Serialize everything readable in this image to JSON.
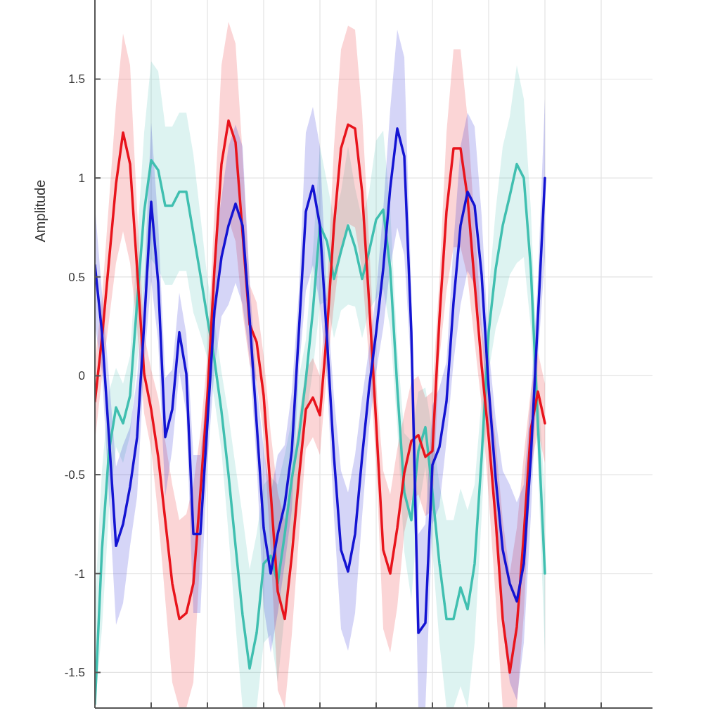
{
  "chart_data": {
    "type": "line",
    "ylabel": "Amplitude",
    "ylim": [
      -1.68,
      1.9
    ],
    "yticks": [
      {
        "value": -1.5,
        "label": "-1.5"
      },
      {
        "value": -1,
        "label": "-1"
      },
      {
        "value": -0.5,
        "label": "-0.5"
      },
      {
        "value": 0,
        "label": "0"
      },
      {
        "value": 0.5,
        "label": "0.5"
      },
      {
        "value": 1,
        "label": "1"
      },
      {
        "value": 1.5,
        "label": "1.5"
      }
    ],
    "grid": true,
    "tick_labels": "y",
    "line_style": "solid",
    "categories": [
      null,
      null,
      null,
      null,
      null,
      null,
      null,
      null,
      null,
      null,
      null,
      null,
      null,
      null,
      null,
      null,
      null,
      null,
      null,
      null,
      null,
      null,
      null,
      null,
      null,
      null,
      null,
      null,
      null,
      null,
      null,
      null,
      null,
      null,
      null,
      null,
      null,
      null,
      null,
      null,
      null,
      null,
      null,
      null,
      null,
      null,
      null,
      null,
      null,
      null,
      null,
      null,
      null,
      null,
      null,
      null,
      null,
      null,
      null,
      null,
      null,
      null,
      null,
      null,
      null
    ],
    "series": [
      {
        "color": "#40bfb0",
        "values": [
          -1.66,
          -0.88,
          -0.38,
          -0.16,
          -0.24,
          -0.1,
          0.37,
          0.83,
          1.09,
          1.04,
          0.86,
          0.86,
          0.93,
          0.93,
          0.72,
          0.51,
          0.29,
          0.08,
          -0.18,
          -0.5,
          -0.86,
          -1.21,
          -1.48,
          -1.3,
          -0.95,
          -0.91,
          -1.05,
          -0.8,
          -0.52,
          -0.31,
          -0.02,
          0.33,
          0.76,
          0.68,
          0.49,
          0.63,
          0.76,
          0.65,
          0.49,
          0.63,
          0.79,
          0.84,
          0.54,
          -0.06,
          -0.59,
          -0.73,
          -0.38,
          -0.26,
          -0.59,
          -0.95,
          -1.23,
          -1.23,
          -1.07,
          -1.18,
          -0.95,
          -0.41,
          0.22,
          0.54,
          0.76,
          0.91,
          1.07,
          1.0,
          0.54,
          -0.24,
          -1.0
        ],
        "lower": [
          -1.68,
          -1.28,
          -0.68,
          -0.36,
          -0.44,
          -0.3,
          0.07,
          0.43,
          0.59,
          0.54,
          0.46,
          0.46,
          0.53,
          0.53,
          0.32,
          0.21,
          0.09,
          -0.12,
          -0.38,
          -0.8,
          -1.26,
          -1.68,
          -1.68,
          -1.68,
          -1.35,
          -1.31,
          -1.55,
          -1.2,
          -0.82,
          -0.61,
          -0.22,
          0.03,
          0.36,
          0.38,
          0.19,
          0.33,
          0.36,
          0.35,
          0.19,
          0.33,
          0.39,
          0.44,
          0.24,
          -0.26,
          -0.89,
          -1.13,
          -0.68,
          -0.46,
          -0.89,
          -1.35,
          -1.68,
          -1.68,
          -1.57,
          -1.68,
          -1.35,
          -0.71,
          0.02,
          0.24,
          0.36,
          0.51,
          0.57,
          0.6,
          0.24,
          -0.44,
          -1.4
        ],
        "upper": [
          -1.16,
          -0.48,
          -0.08,
          0.04,
          -0.04,
          0.1,
          0.67,
          1.23,
          1.59,
          1.54,
          1.26,
          1.26,
          1.33,
          1.33,
          1.12,
          0.81,
          0.49,
          0.28,
          0.02,
          -0.2,
          -0.46,
          -0.71,
          -0.98,
          -0.8,
          -0.55,
          -0.51,
          -0.55,
          -0.4,
          -0.22,
          -0.01,
          0.18,
          0.63,
          1.16,
          0.98,
          0.79,
          0.93,
          1.16,
          0.95,
          0.79,
          0.93,
          1.19,
          1.24,
          0.84,
          0.14,
          -0.29,
          -0.33,
          -0.08,
          -0.06,
          -0.29,
          -0.55,
          -0.73,
          -0.73,
          -0.57,
          -0.68,
          -0.55,
          -0.11,
          0.42,
          0.84,
          1.16,
          1.31,
          1.57,
          1.4,
          0.84,
          -0.04,
          -0.6
        ]
      },
      {
        "color": "#e8141c",
        "values": [
          -0.13,
          0.19,
          0.58,
          0.97,
          1.23,
          1.07,
          0.54,
          0.01,
          -0.17,
          -0.41,
          -0.73,
          -1.05,
          -1.23,
          -1.2,
          -1.05,
          -0.59,
          -0.1,
          0.54,
          1.07,
          1.29,
          1.18,
          0.72,
          0.26,
          0.17,
          -0.1,
          -0.59,
          -1.09,
          -1.23,
          -0.91,
          -0.52,
          -0.17,
          -0.11,
          -0.2,
          0.22,
          0.76,
          1.15,
          1.27,
          1.25,
          0.93,
          0.37,
          -0.24,
          -0.88,
          -1.0,
          -0.77,
          -0.49,
          -0.33,
          -0.3,
          -0.41,
          -0.38,
          0.29,
          0.83,
          1.15,
          1.15,
          0.9,
          0.47,
          0.05,
          -0.31,
          -0.73,
          -1.23,
          -1.5,
          -1.27,
          -0.8,
          -0.27,
          -0.08,
          -0.24
        ],
        "lower": [
          -0.33,
          -0.01,
          0.28,
          0.57,
          0.73,
          0.57,
          0.24,
          -0.19,
          -0.37,
          -0.71,
          -1.13,
          -1.55,
          -1.68,
          -1.68,
          -1.55,
          -0.89,
          -0.3,
          0.24,
          0.57,
          0.79,
          0.68,
          0.32,
          0.06,
          -0.03,
          -0.3,
          -0.89,
          -1.59,
          -1.68,
          -1.31,
          -0.82,
          -0.37,
          -0.31,
          -0.4,
          0.02,
          0.36,
          0.65,
          0.77,
          0.75,
          0.53,
          0.07,
          -0.44,
          -1.28,
          -1.4,
          -1.17,
          -0.79,
          -0.63,
          -0.6,
          -0.71,
          -0.68,
          0.09,
          0.43,
          0.65,
          0.65,
          0.5,
          0.17,
          -0.15,
          -0.61,
          -1.13,
          -1.68,
          -1.68,
          -1.68,
          -1.2,
          -0.47,
          -0.28,
          -0.44
        ],
        "upper": [
          0.07,
          0.39,
          0.88,
          1.37,
          1.73,
          1.57,
          0.84,
          0.21,
          0.03,
          -0.11,
          -0.33,
          -0.55,
          -0.73,
          -0.7,
          -0.55,
          -0.29,
          0.1,
          0.84,
          1.57,
          1.79,
          1.68,
          1.12,
          0.46,
          0.37,
          0.1,
          -0.29,
          -0.59,
          -0.73,
          -0.51,
          -0.22,
          0.03,
          0.09,
          0.0,
          0.42,
          1.16,
          1.65,
          1.77,
          1.75,
          1.33,
          0.67,
          -0.04,
          -0.48,
          -0.6,
          -0.37,
          -0.19,
          -0.03,
          0.0,
          -0.11,
          -0.08,
          0.49,
          1.23,
          1.65,
          1.65,
          1.3,
          0.77,
          0.25,
          -0.01,
          -0.33,
          -0.73,
          -1.0,
          -0.77,
          -0.4,
          -0.07,
          0.12,
          -0.04
        ]
      },
      {
        "color": "#1414d2",
        "values": [
          0.56,
          0.22,
          -0.31,
          -0.86,
          -0.75,
          -0.56,
          -0.31,
          0.26,
          0.88,
          0.47,
          -0.31,
          -0.17,
          0.22,
          0.01,
          -0.8,
          -0.8,
          -0.24,
          0.33,
          0.6,
          0.76,
          0.87,
          0.76,
          0.29,
          -0.24,
          -0.77,
          -1.0,
          -0.8,
          -0.65,
          -0.38,
          0.22,
          0.83,
          0.96,
          0.76,
          0.19,
          -0.41,
          -0.88,
          -0.99,
          -0.8,
          -0.41,
          -0.06,
          0.22,
          0.54,
          0.95,
          1.25,
          1.11,
          0.22,
          -1.3,
          -1.25,
          -0.45,
          -0.36,
          -0.13,
          0.37,
          0.76,
          0.93,
          0.86,
          0.51,
          -0.06,
          -0.52,
          -0.88,
          -1.05,
          -1.14,
          -0.95,
          -0.41,
          0.29,
          1.0
        ],
        "lower": [
          0.26,
          0.02,
          -0.61,
          -1.26,
          -1.15,
          -0.86,
          -0.61,
          0.06,
          0.48,
          0.17,
          -0.61,
          -0.37,
          0.02,
          -0.19,
          -1.2,
          -1.2,
          -0.44,
          0.03,
          0.3,
          0.36,
          0.47,
          0.36,
          0.09,
          -0.44,
          -1.17,
          -1.4,
          -1.2,
          -0.95,
          -0.68,
          0.02,
          0.43,
          0.56,
          0.36,
          -0.01,
          -0.71,
          -1.28,
          -1.39,
          -1.2,
          -0.71,
          -0.26,
          0.02,
          0.24,
          0.55,
          0.75,
          0.61,
          0.02,
          -1.68,
          -1.68,
          -0.75,
          -0.66,
          -0.33,
          0.07,
          0.36,
          0.53,
          0.46,
          0.21,
          -0.26,
          -0.82,
          -1.28,
          -1.55,
          -1.64,
          -1.35,
          -0.71,
          0.09,
          0.6
        ],
        "upper": [
          0.86,
          0.42,
          -0.01,
          -0.46,
          -0.35,
          -0.26,
          -0.01,
          0.46,
          1.28,
          0.77,
          -0.01,
          0.03,
          0.42,
          0.21,
          -0.4,
          -0.4,
          -0.04,
          0.63,
          0.9,
          1.16,
          1.27,
          1.16,
          0.49,
          -0.04,
          -0.37,
          -0.6,
          -0.4,
          -0.35,
          -0.08,
          0.42,
          1.23,
          1.36,
          1.16,
          0.39,
          -0.11,
          -0.48,
          -0.59,
          -0.4,
          -0.11,
          0.14,
          0.42,
          0.84,
          1.35,
          1.75,
          1.61,
          0.42,
          -0.8,
          -0.75,
          -0.15,
          -0.06,
          0.07,
          0.67,
          1.16,
          1.33,
          1.26,
          0.81,
          0.14,
          -0.22,
          -0.48,
          -0.55,
          -0.64,
          -0.55,
          -0.11,
          0.49,
          1.4
        ]
      }
    ]
  }
}
